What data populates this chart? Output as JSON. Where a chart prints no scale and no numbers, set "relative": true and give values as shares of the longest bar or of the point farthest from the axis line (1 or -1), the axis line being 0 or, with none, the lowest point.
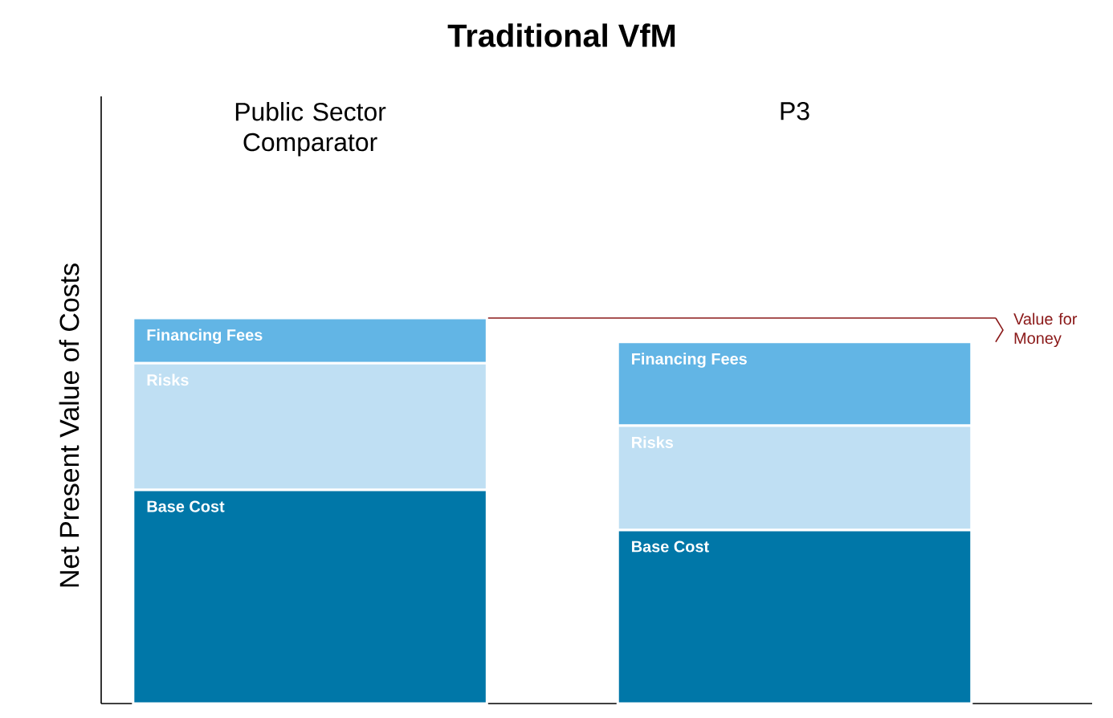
{
  "chart_data": {
    "type": "bar",
    "title": "Traditional VfM",
    "ylabel": "Net Present Value of Costs",
    "categories": [
      "Public Sector Comparator",
      "P3"
    ],
    "stacked": true,
    "relative": true,
    "series": [
      {
        "name": "Base Cost",
        "color": "#0077a8",
        "values": [
          0.554,
          0.45
        ]
      },
      {
        "name": "Risks",
        "color": "#bfdff3",
        "values": [
          0.329,
          0.271
        ]
      },
      {
        "name": "Financing Fees",
        "color": "#62b5e5",
        "values": [
          0.117,
          0.217
        ]
      }
    ],
    "ref_lines": [
      {
        "axis": "y",
        "value": 1,
        "color": "#8b1a1a"
      }
    ],
    "annotations": [
      "Value for Money"
    ]
  }
}
